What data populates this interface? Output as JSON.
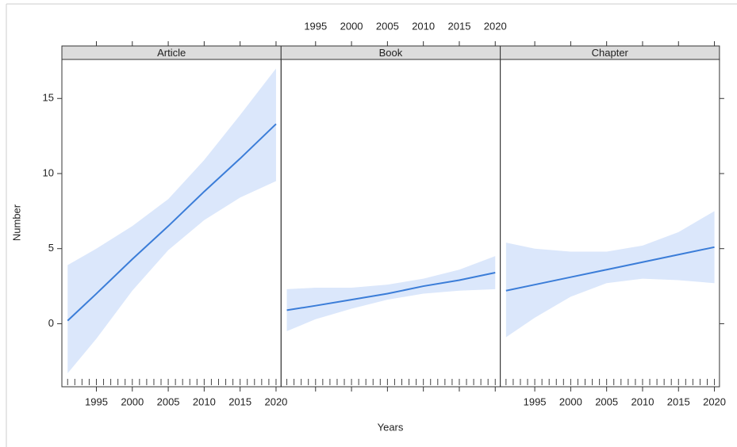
{
  "chart_data": {
    "type": "line",
    "x_label": "Years",
    "y_label": "Number",
    "xlim": [
      1990.2,
      2020.7
    ],
    "xticks": [
      1995,
      2000,
      2005,
      2010,
      2015,
      2020
    ],
    "ylim": [
      -4.2,
      17.6
    ],
    "yticks": [
      0,
      5,
      10,
      15
    ],
    "line_color": "#3b7dd8",
    "band_color": "#dbe7fb",
    "x": [
      1991,
      1995,
      2000,
      2005,
      2010,
      2015,
      2020
    ],
    "rug": [
      1991,
      1992,
      1993,
      1994,
      1995,
      1996,
      1997,
      1998,
      1999,
      2000,
      2001,
      2002,
      2003,
      2004,
      2005,
      2006,
      2007,
      2008,
      2009,
      2010,
      2011,
      2012,
      2013,
      2014,
      2015,
      2016,
      2017,
      2018,
      2019,
      2020
    ],
    "panels": [
      {
        "title": "Article",
        "values": [
          0.2,
          2.0,
          4.3,
          6.5,
          8.8,
          11.0,
          13.3
        ],
        "lower": [
          -3.3,
          -1.0,
          2.2,
          4.9,
          6.9,
          8.4,
          9.5
        ],
        "upper": [
          3.9,
          5.0,
          6.5,
          8.3,
          10.9,
          13.9,
          17.0
        ]
      },
      {
        "title": "Book",
        "values": [
          0.9,
          1.2,
          1.6,
          2.0,
          2.5,
          2.9,
          3.4
        ],
        "lower": [
          -0.5,
          0.3,
          1.0,
          1.6,
          2.0,
          2.2,
          2.3
        ],
        "upper": [
          2.3,
          2.4,
          2.4,
          2.6,
          3.0,
          3.6,
          4.5
        ]
      },
      {
        "title": "Chapter",
        "values": [
          2.2,
          2.6,
          3.1,
          3.6,
          4.1,
          4.6,
          5.1
        ],
        "lower": [
          -0.9,
          0.4,
          1.8,
          2.7,
          3.0,
          2.9,
          2.7
        ],
        "upper": [
          5.4,
          5.0,
          4.8,
          4.8,
          5.2,
          6.1,
          7.5
        ]
      }
    ]
  }
}
